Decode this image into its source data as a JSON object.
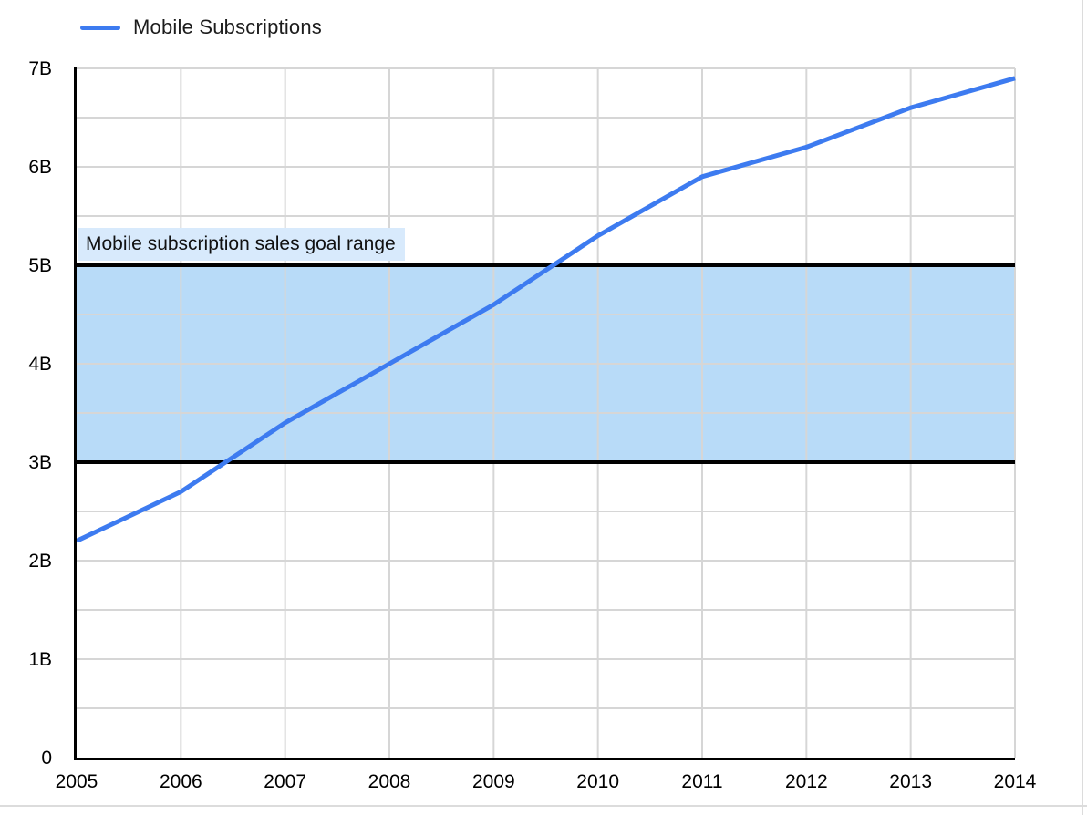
{
  "colors": {
    "line": "#3d7bf0",
    "band_fill": "#b8dbf8",
    "band_border": "#000000",
    "band_label_bg": "#d8eafc",
    "grid": "#d6d6d6",
    "axis": "#000000",
    "text": "#000000",
    "sheet_grid": "#dcdcdc"
  },
  "chart_data": {
    "type": "line",
    "title": "",
    "xlabel": "",
    "ylabel": "",
    "x": [
      2005,
      2006,
      2007,
      2008,
      2009,
      2010,
      2011,
      2012,
      2013,
      2014
    ],
    "x_tick_labels": [
      "2005",
      "2006",
      "2007",
      "2008",
      "2009",
      "2010",
      "2011",
      "2012",
      "2013",
      "2014"
    ],
    "series": [
      {
        "name": "Mobile Subscriptions",
        "values": [
          2.2,
          2.7,
          3.4,
          4.0,
          4.6,
          5.3,
          5.9,
          6.2,
          6.6,
          6.9
        ],
        "unit": "billions"
      }
    ],
    "ylim": [
      0,
      7
    ],
    "y_tick_values": [
      0,
      1,
      2,
      3,
      4,
      5,
      6,
      7
    ],
    "y_tick_labels": [
      "0",
      "1B",
      "2B",
      "3B",
      "4B",
      "5B",
      "6B",
      "7B"
    ],
    "minor_grid_step": 0.5,
    "grid": "on",
    "legend_position": "top-left",
    "annotations": {
      "goal_band": {
        "label": "Mobile subscription sales goal range",
        "from": 3,
        "to": 5
      }
    }
  }
}
